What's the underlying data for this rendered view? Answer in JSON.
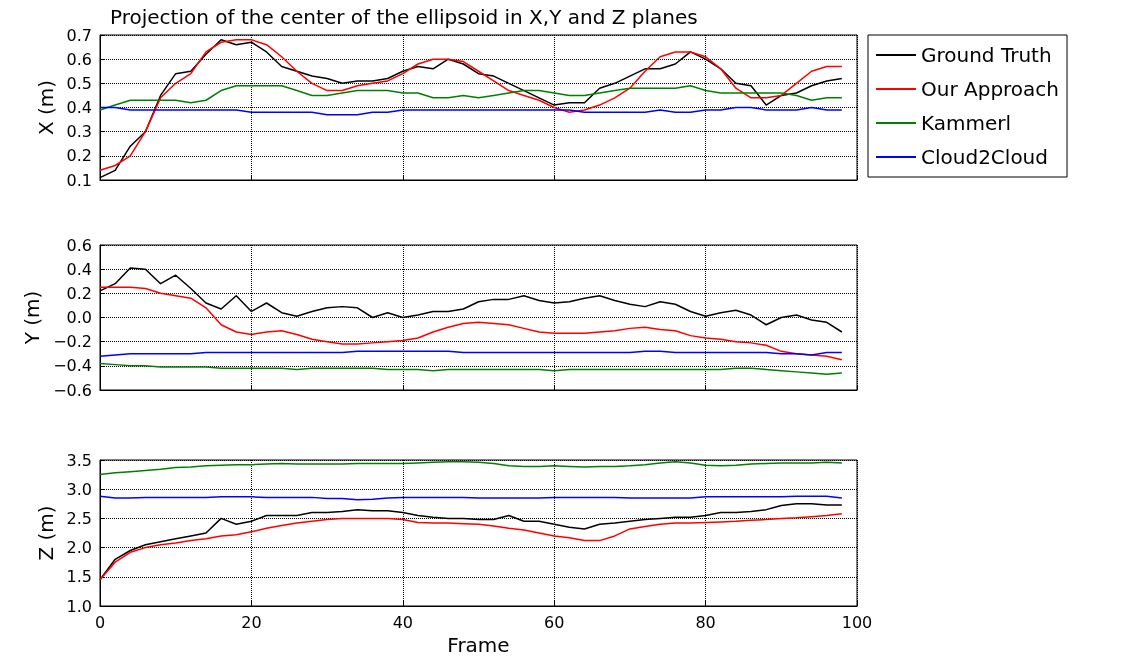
{
  "chart_data": [
    {
      "type": "line",
      "title": "Projection of the center of the ellipsoid in X,Y and Z planes",
      "ylabel": "X (m)",
      "legend": "top right",
      "grid": true,
      "line_style": "solid",
      "marker": "none",
      "tick_labels": "y",
      "x": [
        0,
        2,
        4,
        6,
        8,
        10,
        12,
        14,
        16,
        18,
        20,
        22,
        24,
        26,
        28,
        30,
        32,
        34,
        36,
        38,
        40,
        42,
        44,
        46,
        48,
        50,
        52,
        54,
        56,
        58,
        60,
        62,
        64,
        66,
        68,
        70,
        72,
        74,
        76,
        78,
        80,
        82,
        84,
        86,
        88,
        90,
        92,
        94,
        96,
        98
      ],
      "xlim": [
        0,
        100
      ],
      "xticks": [
        0,
        20,
        40,
        60,
        80,
        100
      ],
      "ylim": [
        0.1,
        0.7
      ],
      "yticks": [
        0.1,
        0.2,
        0.3,
        0.4,
        0.5,
        0.6,
        0.7
      ],
      "series": [
        {
          "name": "Ground Truth",
          "color": "#000000",
          "values": [
            0.11,
            0.14,
            0.24,
            0.3,
            0.45,
            0.54,
            0.55,
            0.62,
            0.68,
            0.66,
            0.67,
            0.63,
            0.57,
            0.55,
            0.53,
            0.52,
            0.5,
            0.51,
            0.51,
            0.52,
            0.55,
            0.57,
            0.56,
            0.6,
            0.58,
            0.54,
            0.53,
            0.5,
            0.47,
            0.44,
            0.41,
            0.42,
            0.42,
            0.48,
            0.5,
            0.53,
            0.56,
            0.56,
            0.58,
            0.63,
            0.6,
            0.56,
            0.5,
            0.49,
            0.41,
            0.45,
            0.46,
            0.49,
            0.51,
            0.52
          ]
        },
        {
          "name": "Our Approach",
          "color": "#ff0000",
          "values": [
            0.14,
            0.16,
            0.2,
            0.3,
            0.44,
            0.5,
            0.54,
            0.63,
            0.67,
            0.68,
            0.68,
            0.66,
            0.61,
            0.55,
            0.5,
            0.47,
            0.47,
            0.49,
            0.5,
            0.51,
            0.54,
            0.58,
            0.6,
            0.6,
            0.59,
            0.55,
            0.51,
            0.47,
            0.45,
            0.43,
            0.4,
            0.38,
            0.39,
            0.41,
            0.44,
            0.48,
            0.55,
            0.61,
            0.63,
            0.63,
            0.61,
            0.56,
            0.48,
            0.44,
            0.44,
            0.45,
            0.5,
            0.55,
            0.57,
            0.57
          ]
        },
        {
          "name": "Kammerl",
          "color": "#008000",
          "values": [
            0.39,
            0.41,
            0.43,
            0.43,
            0.43,
            0.43,
            0.42,
            0.43,
            0.47,
            0.49,
            0.49,
            0.49,
            0.49,
            0.47,
            0.45,
            0.45,
            0.46,
            0.47,
            0.47,
            0.47,
            0.46,
            0.46,
            0.44,
            0.44,
            0.45,
            0.44,
            0.45,
            0.46,
            0.47,
            0.47,
            0.46,
            0.45,
            0.45,
            0.46,
            0.47,
            0.48,
            0.48,
            0.48,
            0.48,
            0.49,
            0.47,
            0.46,
            0.46,
            0.46,
            0.46,
            0.46,
            0.45,
            0.43,
            0.44,
            0.44
          ]
        },
        {
          "name": "Cloud2Cloud",
          "color": "#0000ff",
          "values": [
            0.4,
            0.4,
            0.39,
            0.39,
            0.39,
            0.39,
            0.39,
            0.39,
            0.39,
            0.39,
            0.38,
            0.38,
            0.38,
            0.38,
            0.38,
            0.37,
            0.37,
            0.37,
            0.38,
            0.38,
            0.39,
            0.39,
            0.39,
            0.39,
            0.39,
            0.39,
            0.39,
            0.39,
            0.39,
            0.39,
            0.39,
            0.39,
            0.38,
            0.38,
            0.38,
            0.38,
            0.38,
            0.39,
            0.38,
            0.38,
            0.39,
            0.39,
            0.4,
            0.4,
            0.39,
            0.39,
            0.39,
            0.4,
            0.39,
            0.39
          ]
        }
      ]
    },
    {
      "type": "line",
      "ylabel": "Y (m)",
      "grid": true,
      "line_style": "solid",
      "marker": "none",
      "tick_labels": "y",
      "x": [
        0,
        2,
        4,
        6,
        8,
        10,
        12,
        14,
        16,
        18,
        20,
        22,
        24,
        26,
        28,
        30,
        32,
        34,
        36,
        38,
        40,
        42,
        44,
        46,
        48,
        50,
        52,
        54,
        56,
        58,
        60,
        62,
        64,
        66,
        68,
        70,
        72,
        74,
        76,
        78,
        80,
        82,
        84,
        86,
        88,
        90,
        92,
        94,
        96,
        98
      ],
      "xlim": [
        0,
        100
      ],
      "xticks": [
        0,
        20,
        40,
        60,
        80,
        100
      ],
      "ylim": [
        -0.6,
        0.6
      ],
      "yticks": [
        {
          "value": -0.6,
          "label": "−0.6"
        },
        {
          "value": -0.4,
          "label": "−0.4"
        },
        {
          "value": -0.2,
          "label": "−0.2"
        },
        {
          "value": 0,
          "label": "0.0"
        },
        0.2,
        0.4,
        0.6
      ],
      "series": [
        {
          "color": "#000000",
          "values": [
            0.22,
            0.28,
            0.41,
            0.4,
            0.28,
            0.35,
            0.24,
            0.12,
            0.07,
            0.18,
            0.05,
            0.12,
            0.04,
            0.01,
            0.05,
            0.08,
            0.09,
            0.08,
            0.0,
            0.04,
            0.0,
            0.02,
            0.05,
            0.05,
            0.07,
            0.13,
            0.15,
            0.15,
            0.18,
            0.14,
            0.12,
            0.13,
            0.16,
            0.18,
            0.14,
            0.11,
            0.09,
            0.13,
            0.11,
            0.05,
            0.01,
            0.04,
            0.06,
            0.02,
            -0.06,
            0.0,
            0.02,
            -0.02,
            -0.04,
            -0.12
          ]
        },
        {
          "color": "#ff0000",
          "values": [
            0.25,
            0.25,
            0.25,
            0.24,
            0.2,
            0.18,
            0.16,
            0.08,
            -0.06,
            -0.12,
            -0.14,
            -0.12,
            -0.11,
            -0.14,
            -0.18,
            -0.2,
            -0.22,
            -0.22,
            -0.21,
            -0.2,
            -0.19,
            -0.17,
            -0.12,
            -0.08,
            -0.05,
            -0.04,
            -0.05,
            -0.06,
            -0.09,
            -0.12,
            -0.13,
            -0.13,
            -0.13,
            -0.12,
            -0.11,
            -0.09,
            -0.08,
            -0.1,
            -0.11,
            -0.15,
            -0.17,
            -0.18,
            -0.2,
            -0.21,
            -0.23,
            -0.28,
            -0.3,
            -0.31,
            -0.32,
            -0.35
          ]
        },
        {
          "color": "#008000",
          "values": [
            -0.38,
            -0.39,
            -0.4,
            -0.4,
            -0.41,
            -0.41,
            -0.41,
            -0.41,
            -0.42,
            -0.42,
            -0.42,
            -0.42,
            -0.42,
            -0.43,
            -0.42,
            -0.42,
            -0.42,
            -0.42,
            -0.42,
            -0.43,
            -0.43,
            -0.43,
            -0.44,
            -0.43,
            -0.43,
            -0.43,
            -0.43,
            -0.43,
            -0.43,
            -0.43,
            -0.44,
            -0.43,
            -0.43,
            -0.43,
            -0.43,
            -0.43,
            -0.43,
            -0.43,
            -0.43,
            -0.43,
            -0.43,
            -0.43,
            -0.42,
            -0.42,
            -0.43,
            -0.44,
            -0.45,
            -0.46,
            -0.47,
            -0.46
          ]
        },
        {
          "color": "#0000ff",
          "values": [
            -0.32,
            -0.31,
            -0.3,
            -0.3,
            -0.3,
            -0.3,
            -0.3,
            -0.29,
            -0.29,
            -0.29,
            -0.29,
            -0.29,
            -0.29,
            -0.29,
            -0.29,
            -0.29,
            -0.29,
            -0.28,
            -0.28,
            -0.28,
            -0.28,
            -0.28,
            -0.28,
            -0.28,
            -0.29,
            -0.29,
            -0.29,
            -0.29,
            -0.29,
            -0.29,
            -0.29,
            -0.29,
            -0.29,
            -0.29,
            -0.29,
            -0.29,
            -0.28,
            -0.28,
            -0.29,
            -0.29,
            -0.29,
            -0.29,
            -0.29,
            -0.29,
            -0.29,
            -0.3,
            -0.3,
            -0.31,
            -0.29,
            -0.29
          ]
        }
      ]
    },
    {
      "type": "line",
      "xlabel": "Frame",
      "ylabel": "Z (m)",
      "grid": true,
      "line_style": "solid",
      "marker": "none",
      "x": [
        0,
        2,
        4,
        6,
        8,
        10,
        12,
        14,
        16,
        18,
        20,
        22,
        24,
        26,
        28,
        30,
        32,
        34,
        36,
        38,
        40,
        42,
        44,
        46,
        48,
        50,
        52,
        54,
        56,
        58,
        60,
        62,
        64,
        66,
        68,
        70,
        72,
        74,
        76,
        78,
        80,
        82,
        84,
        86,
        88,
        90,
        92,
        94,
        96,
        98
      ],
      "xlim": [
        0,
        100
      ],
      "xticks": [
        0,
        20,
        40,
        60,
        80,
        100
      ],
      "ylim": [
        1.0,
        3.5
      ],
      "yticks": [
        {
          "value": 1,
          "label": "1.0"
        },
        1.5,
        {
          "value": 2,
          "label": "2.0"
        },
        2.5,
        {
          "value": 3,
          "label": "3.0"
        },
        3.5
      ],
      "series": [
        {
          "color": "#000000",
          "values": [
            1.45,
            1.8,
            1.95,
            2.05,
            2.1,
            2.15,
            2.2,
            2.25,
            2.5,
            2.4,
            2.45,
            2.55,
            2.55,
            2.55,
            2.6,
            2.6,
            2.62,
            2.65,
            2.63,
            2.63,
            2.6,
            2.55,
            2.52,
            2.5,
            2.5,
            2.48,
            2.48,
            2.55,
            2.45,
            2.45,
            2.4,
            2.35,
            2.32,
            2.4,
            2.42,
            2.45,
            2.48,
            2.5,
            2.52,
            2.52,
            2.55,
            2.6,
            2.6,
            2.62,
            2.65,
            2.72,
            2.75,
            2.75,
            2.73,
            2.73
          ]
        },
        {
          "color": "#ff0000",
          "values": [
            1.45,
            1.75,
            1.92,
            2.0,
            2.05,
            2.08,
            2.12,
            2.15,
            2.2,
            2.22,
            2.27,
            2.33,
            2.38,
            2.42,
            2.45,
            2.48,
            2.5,
            2.5,
            2.5,
            2.5,
            2.48,
            2.43,
            2.42,
            2.42,
            2.41,
            2.4,
            2.37,
            2.33,
            2.3,
            2.25,
            2.2,
            2.17,
            2.12,
            2.12,
            2.2,
            2.32,
            2.36,
            2.4,
            2.42,
            2.42,
            2.43,
            2.44,
            2.45,
            2.47,
            2.48,
            2.5,
            2.51,
            2.53,
            2.55,
            2.58
          ]
        },
        {
          "color": "#008000",
          "values": [
            3.25,
            3.28,
            3.3,
            3.32,
            3.34,
            3.37,
            3.38,
            3.4,
            3.41,
            3.42,
            3.42,
            3.43,
            3.44,
            3.43,
            3.43,
            3.43,
            3.43,
            3.44,
            3.44,
            3.44,
            3.44,
            3.45,
            3.46,
            3.47,
            3.47,
            3.46,
            3.44,
            3.4,
            3.39,
            3.39,
            3.4,
            3.39,
            3.38,
            3.39,
            3.39,
            3.4,
            3.42,
            3.45,
            3.47,
            3.45,
            3.41,
            3.4,
            3.41,
            3.43,
            3.44,
            3.45,
            3.45,
            3.45,
            3.46,
            3.45
          ]
        },
        {
          "color": "#0000ff",
          "values": [
            2.88,
            2.85,
            2.85,
            2.86,
            2.86,
            2.86,
            2.86,
            2.86,
            2.87,
            2.87,
            2.87,
            2.86,
            2.86,
            2.86,
            2.86,
            2.84,
            2.84,
            2.82,
            2.83,
            2.85,
            2.86,
            2.86,
            2.86,
            2.86,
            2.86,
            2.85,
            2.85,
            2.85,
            2.85,
            2.85,
            2.86,
            2.86,
            2.86,
            2.86,
            2.86,
            2.85,
            2.85,
            2.85,
            2.85,
            2.85,
            2.87,
            2.87,
            2.87,
            2.87,
            2.87,
            2.87,
            2.88,
            2.88,
            2.88,
            2.85
          ]
        }
      ]
    }
  ]
}
